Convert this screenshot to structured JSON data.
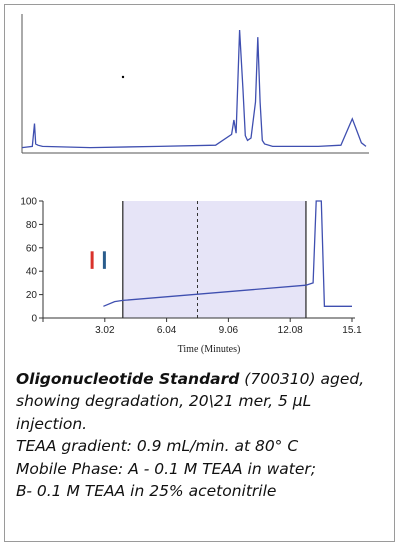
{
  "chart_data": [
    {
      "type": "line",
      "title": "",
      "xlabel": "",
      "ylabel": "",
      "xlim": [
        0,
        15.1
      ],
      "ylim": [
        0,
        100
      ],
      "grid": false,
      "series": [
        {
          "x": [
            0.0,
            0.45,
            0.55,
            0.6,
            0.7,
            0.9,
            3.0,
            6.0,
            8.5,
            9.2,
            9.3,
            9.4,
            9.55,
            9.7,
            9.8,
            9.9,
            10.05,
            10.25,
            10.35,
            10.45,
            10.55,
            10.65,
            11.0,
            13.0,
            14.0,
            14.5,
            14.9,
            15.1
          ],
          "y": [
            2,
            3,
            22,
            5,
            4,
            3,
            2,
            3,
            4,
            13,
            25,
            14,
            100,
            50,
            12,
            8,
            10,
            40,
            94,
            40,
            8,
            5,
            3,
            3,
            4,
            26,
            6,
            3
          ]
        }
      ]
    },
    {
      "type": "line",
      "title": "",
      "xlabel": "Time (Minutes)",
      "ylabel": "",
      "xlim": [
        0,
        15.1
      ],
      "ylim": [
        0,
        100
      ],
      "xticks": [
        "3.02",
        "6.04",
        "9.06",
        "12.08",
        "15.1"
      ],
      "yticks": [
        "0",
        "20",
        "40",
        "60",
        "80",
        "100"
      ],
      "grid": false,
      "shaded_region": [
        3.9,
        12.85
      ],
      "solid_lines": [
        3.9,
        12.85
      ],
      "dashed_line": 7.55,
      "series": [
        {
          "x": [
            2.95,
            3.5,
            3.9,
            12.85,
            13.2,
            13.35,
            13.6,
            13.75,
            13.85,
            15.1
          ],
          "y": [
            10,
            14,
            15,
            28,
            30,
            100,
            100,
            10,
            10,
            10
          ]
        }
      ],
      "markers": [
        {
          "x": 2.4,
          "y_from": 42,
          "y_to": 57,
          "color": "#d9322b"
        },
        {
          "x": 3.0,
          "y_from": 42,
          "y_to": 57,
          "color": "#2a5c8c"
        }
      ]
    }
  ],
  "colors": {
    "trace": "#3f4fb0",
    "shade": "#e6e4f7",
    "axis": "#333333"
  },
  "caption": {
    "title_bold": "Oligonucleotide Standard",
    "title_rest": " (700310) aged,",
    "line2": "showing degradation, 20\\21 mer, 5 μL",
    "line3": "injection.",
    "line4": "TEAA gradient: 0.9 mL/min. at 80° C",
    "line5": "Mobile Phase:   A - 0.1 M TEAA in water;",
    "line6": "B-  0.1 M TEAA in 25% acetonitrile"
  }
}
